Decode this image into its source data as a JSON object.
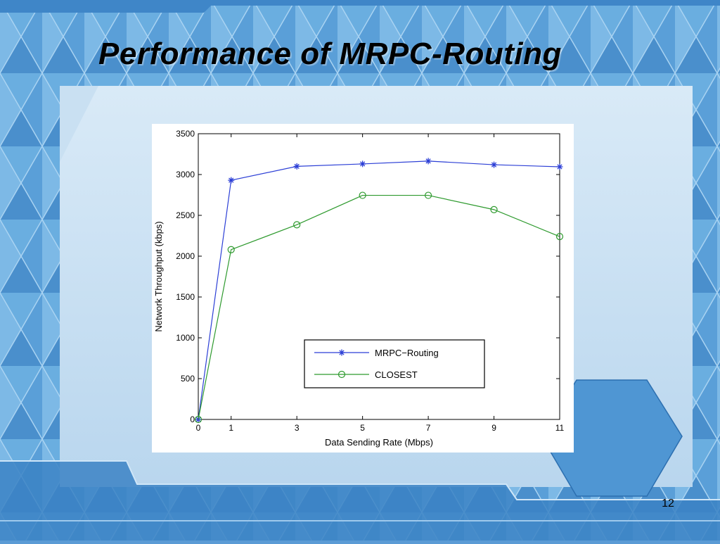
{
  "slide": {
    "title": "Performance of MRPC-Routing",
    "page_number": "12"
  },
  "colors": {
    "background_light": "#c7def0",
    "background_blue": "#4b8fcf",
    "series_mrpc": "#2c3fd6",
    "series_closest": "#2e9a2e"
  },
  "chart_data": {
    "type": "line",
    "title": "",
    "xlabel": "Data Sending Rate (Mbps)",
    "ylabel": "Network Throughput (kbps)",
    "x": [
      0,
      1,
      3,
      5,
      7,
      9,
      11
    ],
    "xticks": [
      0,
      1,
      3,
      5,
      7,
      9,
      11
    ],
    "yticks": [
      0,
      500,
      1000,
      1500,
      2000,
      2500,
      3000,
      3500
    ],
    "xlim": [
      0,
      11
    ],
    "ylim": [
      0,
      3500
    ],
    "grid": false,
    "legend_position": "lower-right",
    "series": [
      {
        "name": "MRPC−Routing",
        "marker": "asterisk",
        "color": "#2c3fd6",
        "values": [
          0,
          2930,
          3100,
          3130,
          3165,
          3120,
          3095
        ]
      },
      {
        "name": "CLOSEST",
        "marker": "circle",
        "color": "#2e9a2e",
        "values": [
          0,
          2080,
          2385,
          2745,
          2745,
          2570,
          2240
        ]
      }
    ]
  }
}
